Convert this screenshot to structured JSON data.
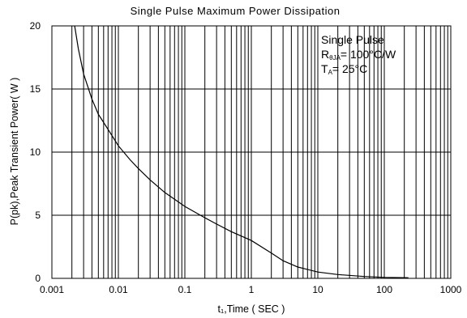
{
  "chart_data": {
    "type": "line",
    "title": "Single Pulse Maximum Power Dissipation",
    "xlabel": "t₁,Time ( SEC )",
    "ylabel": "P(pk),Peak Transient Power( W )",
    "x_scale": "log",
    "xlim": [
      0.001,
      1000
    ],
    "ylim": [
      0,
      20
    ],
    "x_ticks": [
      {
        "value": 0.001,
        "label": "0.001"
      },
      {
        "value": 0.01,
        "label": "0.01"
      },
      {
        "value": 0.1,
        "label": "0.1"
      },
      {
        "value": 1,
        "label": "1"
      },
      {
        "value": 10,
        "label": "10"
      },
      {
        "value": 100,
        "label": "100"
      },
      {
        "value": 1000,
        "label": "1000"
      }
    ],
    "y_ticks": [
      {
        "value": 0,
        "label": "0"
      },
      {
        "value": 5,
        "label": "5"
      },
      {
        "value": 10,
        "label": "10"
      },
      {
        "value": 15,
        "label": "15"
      },
      {
        "value": 20,
        "label": "20"
      }
    ],
    "grid": true,
    "annotation": {
      "line1": "Single Pulse",
      "line2_main": "R",
      "line2_sub": "θJA",
      "line2_rest": "= 100°C/W",
      "line3_main": "T",
      "line3_sub": "A",
      "line3_rest": "= 25°C"
    },
    "series": [
      {
        "x": [
          0.0022,
          0.0025,
          0.003,
          0.004,
          0.005,
          0.007,
          0.01,
          0.015,
          0.02,
          0.03,
          0.05,
          0.1,
          0.2,
          0.3,
          0.5,
          1,
          2,
          3,
          5,
          10,
          20,
          50,
          100,
          230
        ],
        "y": [
          20,
          18.2,
          16.2,
          14.2,
          13.0,
          11.8,
          10.5,
          9.4,
          8.7,
          7.8,
          6.8,
          5.7,
          4.8,
          4.3,
          3.7,
          3.0,
          2.0,
          1.4,
          0.9,
          0.5,
          0.3,
          0.15,
          0.08,
          0.05
        ]
      }
    ]
  }
}
